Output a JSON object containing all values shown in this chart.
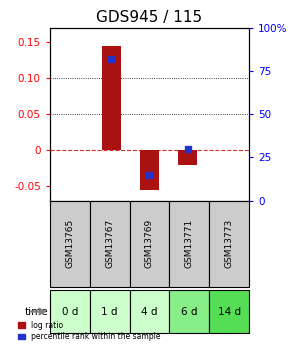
{
  "title": "GDS945 / 115",
  "samples": [
    "GSM13765",
    "GSM13767",
    "GSM13769",
    "GSM13771",
    "GSM13773"
  ],
  "time_labels": [
    "0 d",
    "1 d",
    "4 d",
    "6 d",
    "14 d"
  ],
  "log_ratio": [
    0.0,
    0.145,
    -0.055,
    -0.02,
    0.0
  ],
  "percentile_rank": [
    null,
    82,
    15,
    30,
    null
  ],
  "ylim_left": [
    -0.07,
    0.17
  ],
  "ylim_right": [
    0,
    100
  ],
  "yticks_left": [
    -0.05,
    0.0,
    0.05,
    0.1,
    0.15
  ],
  "yticks_right": [
    0,
    25,
    50,
    75,
    100
  ],
  "bar_color": "#aa1111",
  "dot_color": "#2233cc",
  "zero_line_color": "#cc3333",
  "grid_color": "#000000",
  "background_plot": "#ffffff",
  "sample_bg": "#cccccc",
  "time_bg_colors": [
    "#ccffcc",
    "#ccffcc",
    "#ccffcc",
    "#88ee88",
    "#55dd55"
  ],
  "legend_log_ratio": "log ratio",
  "legend_percentile": "percentile rank within the sample",
  "title_fontsize": 11,
  "tick_fontsize": 7.5,
  "label_fontsize": 8
}
